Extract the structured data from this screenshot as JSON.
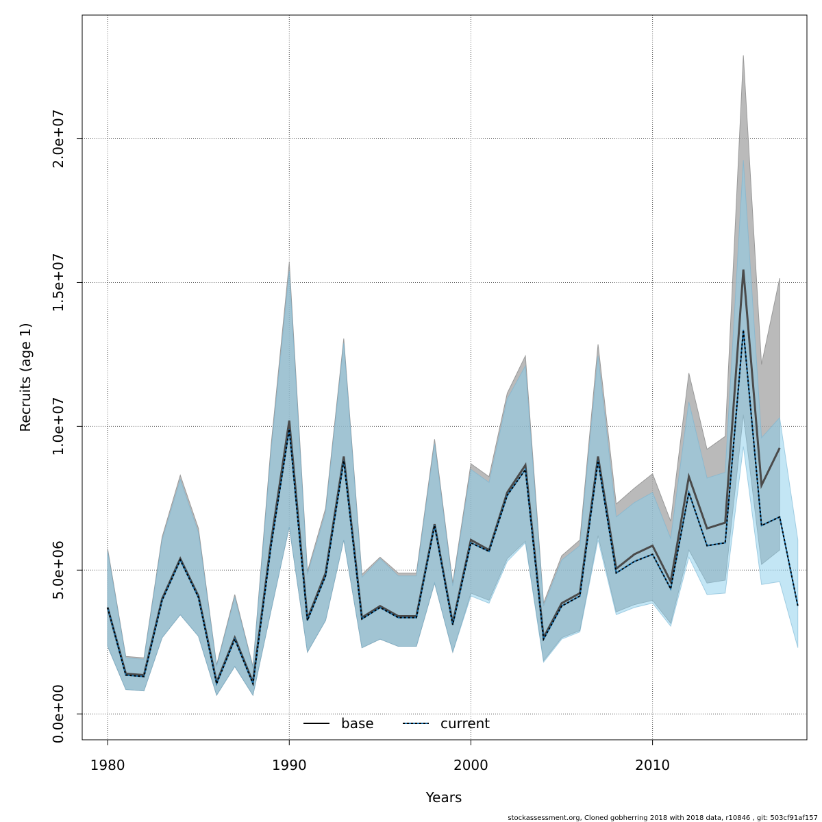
{
  "chart_data": {
    "type": "line",
    "xlabel": "Years",
    "ylabel": "Recruits (age 1)",
    "xlim": [
      1978.6,
      2018.5
    ],
    "ylim": [
      -900000,
      24300000
    ],
    "x_ticks": [
      1980,
      1990,
      2000,
      2010
    ],
    "x_tick_labels": [
      "1980",
      "1990",
      "2000",
      "2010"
    ],
    "y_ticks": [
      0,
      5000000,
      10000000,
      15000000,
      20000000
    ],
    "y_tick_labels": [
      "0.0e+00",
      "5.0e+06",
      "1.0e+07",
      "1.5e+07",
      "2.0e+07"
    ],
    "grid": true,
    "legend_position": "bottom",
    "series": [
      {
        "name": "base",
        "line_style": "solid",
        "color": "#000000",
        "band_color": "#a0a0a0",
        "x": [
          1980,
          1981,
          1982,
          1983,
          1984,
          1985,
          1986,
          1987,
          1988,
          1989,
          1990,
          1991,
          1992,
          1993,
          1994,
          1995,
          1996,
          1997,
          1998,
          1999,
          2000,
          2001,
          2002,
          2003,
          2004,
          2005,
          2006,
          2007,
          2008,
          2009,
          2010,
          2011,
          2012,
          2013,
          2014,
          2015,
          2016,
          2017
        ],
        "values": [
          3700000,
          1400000,
          1350000,
          4000000,
          5400000,
          4100000,
          1100000,
          2650000,
          1100000,
          6000000,
          10200000,
          3300000,
          4900000,
          8950000,
          3350000,
          3750000,
          3400000,
          3400000,
          6600000,
          3150000,
          6050000,
          5700000,
          7700000,
          8650000,
          2650000,
          3850000,
          4200000,
          8950000,
          5050000,
          5550000,
          5850000,
          4600000,
          8250000,
          6450000,
          6650000,
          15450000,
          7950000,
          9250000
        ],
        "lower": [
          2350000,
          850000,
          800000,
          2650000,
          3450000,
          2700000,
          650000,
          1650000,
          650000,
          3600000,
          6500000,
          2150000,
          3250000,
          6050000,
          2300000,
          2600000,
          2350000,
          2350000,
          4550000,
          2150000,
          4200000,
          3950000,
          5400000,
          6000000,
          1850000,
          2650000,
          2900000,
          6200000,
          3550000,
          3800000,
          3950000,
          3150000,
          5700000,
          4550000,
          4650000,
          10400000,
          5200000,
          5700000
        ],
        "upper": [
          5750000,
          2000000,
          1950000,
          6150000,
          8300000,
          6450000,
          1700000,
          4150000,
          1650000,
          9350000,
          15700000,
          4950000,
          7150000,
          13050000,
          4850000,
          5450000,
          4900000,
          4900000,
          9550000,
          4550000,
          8700000,
          8250000,
          11150000,
          12450000,
          3850000,
          5500000,
          6050000,
          12850000,
          7300000,
          7850000,
          8350000,
          6700000,
          11850000,
          9200000,
          9650000,
          22900000,
          12150000,
          15150000
        ]
      },
      {
        "name": "current",
        "line_style": "dotted",
        "color": "#000000",
        "band_color": "#87ceeb",
        "x": [
          1980,
          1981,
          1982,
          1983,
          1984,
          1985,
          1986,
          1987,
          1988,
          1989,
          1990,
          1991,
          1992,
          1993,
          1994,
          1995,
          1996,
          1997,
          1998,
          1999,
          2000,
          2001,
          2002,
          2003,
          2004,
          2005,
          2006,
          2007,
          2008,
          2009,
          2010,
          2011,
          2012,
          2013,
          2014,
          2015,
          2016,
          2017,
          2018
        ],
        "values": [
          3700000,
          1350000,
          1300000,
          3950000,
          5350000,
          4050000,
          1050000,
          2600000,
          1050000,
          5850000,
          9900000,
          3250000,
          4800000,
          8800000,
          3300000,
          3700000,
          3350000,
          3350000,
          6550000,
          3100000,
          5950000,
          5650000,
          7600000,
          8500000,
          2600000,
          3750000,
          4100000,
          8800000,
          4900000,
          5300000,
          5550000,
          4350000,
          7700000,
          5850000,
          5950000,
          13350000,
          6550000,
          6850000,
          3750000
        ],
        "lower": [
          2350000,
          850000,
          800000,
          2650000,
          3450000,
          2700000,
          650000,
          1650000,
          650000,
          3600000,
          6500000,
          2150000,
          3250000,
          6050000,
          2300000,
          2600000,
          2350000,
          2350000,
          4550000,
          2150000,
          4100000,
          3850000,
          5300000,
          5950000,
          1800000,
          2600000,
          2850000,
          6050000,
          3450000,
          3700000,
          3850000,
          3050000,
          5450000,
          4150000,
          4200000,
          9300000,
          4500000,
          4600000,
          2300000
        ],
        "upper": [
          5650000,
          1950000,
          1900000,
          6050000,
          8150000,
          6300000,
          1650000,
          4050000,
          1600000,
          9150000,
          15400000,
          4850000,
          7000000,
          12900000,
          4750000,
          5400000,
          4800000,
          4800000,
          9400000,
          4450000,
          8500000,
          8050000,
          10950000,
          12100000,
          3750000,
          5350000,
          5850000,
          12450000,
          6850000,
          7350000,
          7700000,
          6100000,
          10850000,
          8200000,
          8400000,
          19250000,
          9600000,
          10300000,
          6050000
        ]
      }
    ]
  },
  "footer": "stockassessment.org, Cloned gobherring 2018 with 2018 data, r10846 , git: 503cf91af157"
}
